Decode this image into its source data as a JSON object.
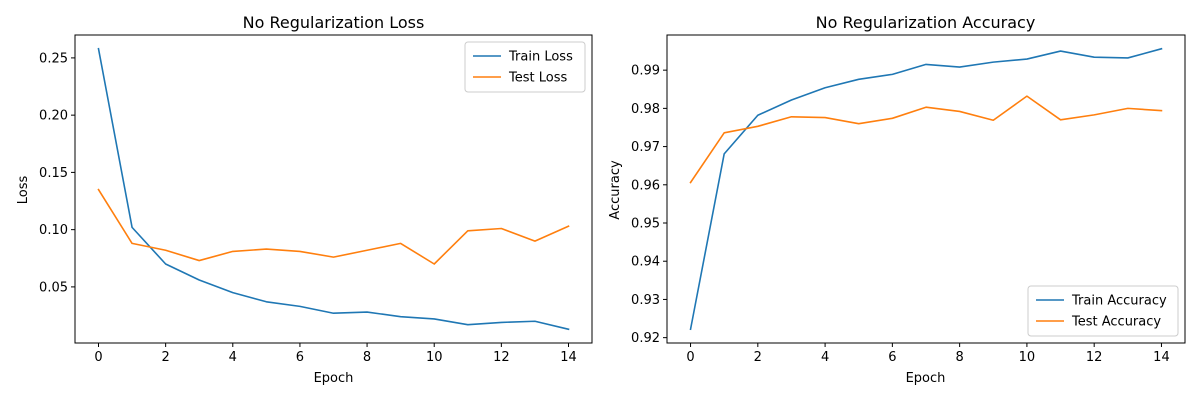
{
  "chart_data": [
    {
      "type": "line",
      "title": "No Regularization Loss",
      "xlabel": "Epoch",
      "ylabel": "Loss",
      "x": [
        0,
        1,
        2,
        3,
        4,
        5,
        6,
        7,
        8,
        9,
        10,
        11,
        12,
        13,
        14
      ],
      "xlim": [
        -0.7,
        14.7
      ],
      "ylim": [
        0.001,
        0.27
      ],
      "xticks": [
        0,
        2,
        4,
        6,
        8,
        10,
        12,
        14
      ],
      "yticks": [
        0.05,
        0.1,
        0.15,
        0.2,
        0.25
      ],
      "ytick_labels": [
        "0.05",
        "0.10",
        "0.15",
        "0.20",
        "0.25"
      ],
      "legend": "top-right",
      "grid": false,
      "series": [
        {
          "name": "Train Loss",
          "color": "#1f77b4",
          "values": [
            0.258,
            0.102,
            0.07,
            0.056,
            0.045,
            0.037,
            0.033,
            0.027,
            0.028,
            0.024,
            0.022,
            0.017,
            0.019,
            0.02,
            0.013
          ]
        },
        {
          "name": "Test Loss",
          "color": "#ff7f0e",
          "values": [
            0.135,
            0.088,
            0.082,
            0.073,
            0.081,
            0.083,
            0.081,
            0.076,
            0.082,
            0.088,
            0.07,
            0.099,
            0.101,
            0.09,
            0.103
          ]
        }
      ]
    },
    {
      "type": "line",
      "title": "No Regularization Accuracy",
      "xlabel": "Epoch",
      "ylabel": "Accuracy",
      "x": [
        0,
        1,
        2,
        3,
        4,
        5,
        6,
        7,
        8,
        9,
        10,
        11,
        12,
        13,
        14
      ],
      "xlim": [
        -0.7,
        14.7
      ],
      "ylim": [
        0.9186,
        0.9992
      ],
      "xticks": [
        0,
        2,
        4,
        6,
        8,
        10,
        12,
        14
      ],
      "yticks": [
        0.92,
        0.93,
        0.94,
        0.95,
        0.96,
        0.97,
        0.98,
        0.99
      ],
      "ytick_labels": [
        "0.92",
        "0.93",
        "0.94",
        "0.95",
        "0.96",
        "0.97",
        "0.98",
        "0.99"
      ],
      "legend": "bottom-right",
      "grid": false,
      "series": [
        {
          "name": "Train Accuracy",
          "color": "#1f77b4",
          "values": [
            0.9222,
            0.9681,
            0.9782,
            0.9822,
            0.9854,
            0.9876,
            0.9889,
            0.9915,
            0.9908,
            0.9921,
            0.9929,
            0.995,
            0.9934,
            0.9932,
            0.9956
          ]
        },
        {
          "name": "Test Accuracy",
          "color": "#ff7f0e",
          "values": [
            0.9606,
            0.9736,
            0.9753,
            0.9778,
            0.9776,
            0.976,
            0.9774,
            0.9803,
            0.9792,
            0.9769,
            0.9832,
            0.977,
            0.9783,
            0.98,
            0.9794
          ]
        }
      ]
    }
  ]
}
